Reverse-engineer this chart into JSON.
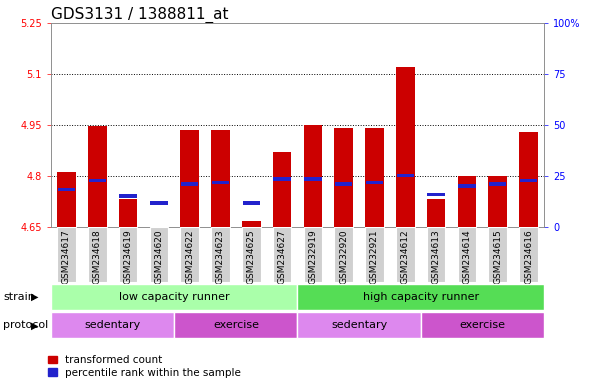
{
  "title": "GDS3131 / 1388811_at",
  "samples": [
    "GSM234617",
    "GSM234618",
    "GSM234619",
    "GSM234620",
    "GSM234622",
    "GSM234623",
    "GSM234625",
    "GSM234627",
    "GSM232919",
    "GSM232920",
    "GSM232921",
    "GSM234612",
    "GSM234613",
    "GSM234614",
    "GSM234615",
    "GSM234616"
  ],
  "red_values": [
    4.81,
    4.945,
    4.73,
    4.645,
    4.935,
    4.935,
    4.665,
    4.87,
    4.95,
    4.94,
    4.94,
    5.12,
    4.73,
    4.8,
    4.8,
    4.93
  ],
  "blue_values": [
    4.76,
    4.785,
    4.74,
    4.72,
    4.775,
    4.78,
    4.72,
    4.79,
    4.79,
    4.775,
    4.78,
    4.8,
    4.745,
    4.77,
    4.775,
    4.785
  ],
  "baseline": 4.65,
  "ylim_left": [
    4.65,
    5.25
  ],
  "ylim_right": [
    0,
    100
  ],
  "yticks_left": [
    4.65,
    4.8,
    4.95,
    5.1,
    5.25
  ],
  "yticks_right": [
    0,
    25,
    50,
    75,
    100
  ],
  "ytick_labels_left": [
    "4.65",
    "4.8",
    "4.95",
    "5.1",
    "5.25"
  ],
  "ytick_labels_right": [
    "0",
    "25",
    "50",
    "75",
    "100%"
  ],
  "dotted_lines": [
    4.8,
    4.95,
    5.1
  ],
  "bar_color_red": "#cc0000",
  "bar_color_blue": "#2222cc",
  "bar_width": 0.6,
  "strain_labels": [
    "low capacity runner",
    "high capacity runner"
  ],
  "strain_color_low": "#aaffaa",
  "strain_color_high": "#55dd55",
  "protocol_labels": [
    "sedentary",
    "exercise",
    "sedentary",
    "exercise"
  ],
  "protocol_color_light": "#dd88ee",
  "protocol_color_dark": "#cc55cc",
  "legend_red": "transformed count",
  "legend_blue": "percentile rank within the sample",
  "axis_label_strain": "strain",
  "axis_label_protocol": "protocol",
  "bg_color_col": "#d0d0d0"
}
